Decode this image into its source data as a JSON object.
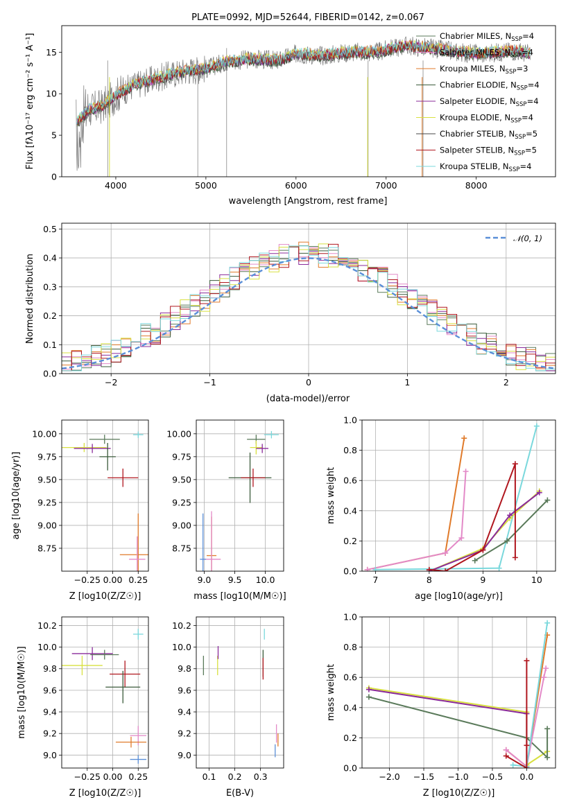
{
  "chart_data": [
    {
      "type": "line",
      "id": "spectrum",
      "title": "PLATE=0992, MJD=52644, FIBERID=0142, z=0.067",
      "xlabel": "wavelength [Angstrom, rest frame]",
      "ylabel": "Flux [fλ10⁻¹⁷ erg cm⁻² s⁻¹ A⁻¹]",
      "xlim": [
        3400,
        8880
      ],
      "ylim": [
        0,
        18.2
      ],
      "xticks": [
        4000,
        5000,
        6000,
        7000,
        8000
      ],
      "yticks": [
        0,
        5,
        10,
        15
      ],
      "grid": false,
      "legend_position": "top-right",
      "data_color": "#777777",
      "data_anchors": {
        "x": [
          3560,
          3700,
          3850,
          4000,
          4200,
          4500,
          4800,
          5000,
          5200,
          5500,
          5800,
          6000,
          6300,
          6600,
          6900,
          7200,
          7500,
          7800,
          8100,
          8400,
          8600
        ],
        "y": [
          6.5,
          8.0,
          8.5,
          9.8,
          11.0,
          12.0,
          12.8,
          13.0,
          13.8,
          14.2,
          14.0,
          14.8,
          14.6,
          15.0,
          15.0,
          15.8,
          15.5,
          15.0,
          14.8,
          15.2,
          14.8
        ]
      },
      "series": [
        {
          "name": "Chabrier MILES, N_SSP=4",
          "color": "#5a7a5a"
        },
        {
          "name": "Salpeter MILES, N_SSP=4",
          "color": "#e38ac8"
        },
        {
          "name": "Kroupa MILES, N_SSP=3",
          "color": "#e07a2a"
        },
        {
          "name": "Chabrier ELODIE, N_SSP=4",
          "color": "#3a5a3a"
        },
        {
          "name": "Salpeter ELODIE, N_SSP=4",
          "color": "#8a2a9a"
        },
        {
          "name": "Kroupa ELODIE, N_SSP=4",
          "color": "#d8e040"
        },
        {
          "name": "Chabrier STELIB, N_SSP=5",
          "color": "#444444"
        },
        {
          "name": "Salpeter STELIB, N_SSP=5",
          "color": "#b0161e"
        },
        {
          "name": "Kroupa STELIB, N_SSP=4",
          "color": "#7ad8dc"
        }
      ],
      "legend_parts": [
        [
          "Chabrier MILES, N",
          "SSP",
          "=4"
        ],
        [
          "Salpeter MILES, N",
          "SSP",
          "=4"
        ],
        [
          "Kroupa MILES, N",
          "SSP",
          "=3"
        ],
        [
          "Chabrier ELODIE, N",
          "SSP",
          "=4"
        ],
        [
          "Salpeter ELODIE, N",
          "SSP",
          "=4"
        ],
        [
          "Kroupa ELODIE, N",
          "SSP",
          "=4"
        ],
        [
          "Chabrier STELIB, N",
          "SSP",
          "=5"
        ],
        [
          "Salpeter STELIB, N",
          "SSP",
          "=5"
        ],
        [
          "Kroupa STELIB, N",
          "SSP",
          "=4"
        ]
      ]
    },
    {
      "type": "line",
      "id": "residuals",
      "xlabel": "(data-model)/error",
      "ylabel": "Normed distribution",
      "xlim": [
        -2.5,
        2.5
      ],
      "ylim": [
        0,
        0.52
      ],
      "xticks": [
        -2,
        -1,
        0,
        1,
        2
      ],
      "yticks": [
        0.0,
        0.1,
        0.2,
        0.3,
        0.4,
        0.5
      ],
      "grid": true,
      "legend_position": "top-right",
      "reference_curve": {
        "name": "𝒩(0, 1)",
        "color": "#5a8fd8"
      },
      "histogram_colors": [
        "#5a7a5a",
        "#e38ac8",
        "#e07a2a",
        "#3a5a3a",
        "#8a2a9a",
        "#d8e040",
        "#b0161e",
        "#7ad8dc"
      ]
    },
    {
      "type": "scatter",
      "id": "age-vs-Z",
      "xlabel": "Z [log10(Z/Z☉)]",
      "ylabel": "age  [log10(age/yr)]",
      "xlim": [
        -0.5,
        0.35
      ],
      "ylim": [
        8.5,
        10.15
      ],
      "xticks": [
        -0.25,
        0.0,
        0.25
      ],
      "yticks": [
        8.75,
        9.0,
        9.25,
        9.5,
        9.75,
        10.0
      ],
      "grid": true,
      "points": [
        {
          "x": 0.25,
          "y": 9.99,
          "xerr": 0.05,
          "yerr": 0.07,
          "color": "#7ad8dc"
        },
        {
          "x": -0.08,
          "y": 9.94,
          "xerr": 0.15,
          "yerr": 0.1,
          "color": "#5a7a5a"
        },
        {
          "x": -0.28,
          "y": 9.85,
          "xerr": 0.22,
          "yerr": 0.1,
          "color": "#d8e040"
        },
        {
          "x": -0.2,
          "y": 9.84,
          "xerr": 0.18,
          "yerr": 0.1,
          "color": "#8a2a9a"
        },
        {
          "x": -0.05,
          "y": 9.75,
          "xerr": 0.08,
          "yerr": 0.3,
          "color": "#3a5a3a"
        },
        {
          "x": 0.1,
          "y": 9.52,
          "xerr": 0.15,
          "yerr": 0.2,
          "color": "#b0161e"
        },
        {
          "x": 0.25,
          "y": 8.68,
          "xerr": 0.18,
          "yerr": 0.9,
          "color": "#e07a2a"
        },
        {
          "x": 0.24,
          "y": 8.63,
          "xerr": 0.08,
          "yerr": 0.5,
          "color": "#e38ac8"
        }
      ]
    },
    {
      "type": "scatter",
      "id": "age-vs-mass",
      "xlabel": "mass [log10(M/M☉)]",
      "ylabel": "",
      "xlim": [
        8.87,
        10.3
      ],
      "ylim": [
        8.5,
        10.15
      ],
      "xticks": [
        9.0,
        9.5,
        10.0
      ],
      "yticks": [
        8.75,
        9.0,
        9.25,
        9.5,
        9.75,
        10.0
      ],
      "grid": true,
      "points": [
        {
          "x": 10.1,
          "y": 9.99,
          "xerr": 0.12,
          "yerr": 0.08,
          "color": "#7ad8dc"
        },
        {
          "x": 9.85,
          "y": 9.94,
          "xerr": 0.15,
          "yerr": 0.1,
          "color": "#5a7a5a"
        },
        {
          "x": 9.85,
          "y": 9.85,
          "xerr": 0.1,
          "yerr": 0.15,
          "color": "#d8e040"
        },
        {
          "x": 9.95,
          "y": 9.84,
          "xerr": 0.1,
          "yerr": 0.1,
          "color": "#8a2a9a"
        },
        {
          "x": 9.75,
          "y": 9.52,
          "xerr": 0.35,
          "yerr": 0.55,
          "color": "#3a5a3a"
        },
        {
          "x": 9.8,
          "y": 9.52,
          "xerr": 0.2,
          "yerr": 0.2,
          "color": "#b0161e"
        },
        {
          "x": 9.12,
          "y": 8.67,
          "xerr": 0.08,
          "yerr": 0.85,
          "color": "#e07a2a"
        },
        {
          "x": 9.12,
          "y": 8.63,
          "xerr": 0.15,
          "yerr": 1.05,
          "color": "#e38ac8"
        },
        {
          "x": 8.98,
          "y": 8.63,
          "xerr": 0.05,
          "yerr": 1.0,
          "color": "#5a8fd8"
        }
      ]
    },
    {
      "type": "line",
      "id": "massweight-vs-age",
      "xlabel": "age  [log10(age/yr)]",
      "ylabel": "mass weight",
      "xlim": [
        6.75,
        10.35
      ],
      "ylim": [
        0,
        1.0
      ],
      "xticks": [
        7,
        8,
        9,
        10
      ],
      "yticks": [
        0.0,
        0.2,
        0.4,
        0.6,
        0.8,
        1.0
      ],
      "grid": true,
      "series": [
        {
          "color": "#e07a2a",
          "x": [
            6.85,
            8.3,
            8.65
          ],
          "y": [
            0.01,
            0.12,
            0.88
          ]
        },
        {
          "color": "#e38ac8",
          "x": [
            6.85,
            8.3,
            8.6,
            8.68
          ],
          "y": [
            0.01,
            0.12,
            0.22,
            0.66
          ]
        },
        {
          "color": "#7ad8dc",
          "x": [
            7.0,
            9.3,
            10.0
          ],
          "y": [
            0.01,
            0.02,
            0.96
          ]
        },
        {
          "color": "#d8e040",
          "x": [
            8.0,
            9.0,
            9.5,
            10.05
          ],
          "y": [
            0.0,
            0.15,
            0.35,
            0.53
          ]
        },
        {
          "color": "#8a2a9a",
          "x": [
            8.0,
            9.0,
            9.5,
            10.05
          ],
          "y": [
            0.0,
            0.14,
            0.37,
            0.52
          ]
        },
        {
          "color": "#5a7a5a",
          "x": [
            8.85,
            9.45,
            10.2
          ],
          "y": [
            0.07,
            0.2,
            0.47
          ]
        },
        {
          "color": "#b0161e",
          "x": [
            8.0,
            8.3,
            9.0,
            9.6,
            9.6
          ],
          "y": [
            0.01,
            0.0,
            0.14,
            0.71,
            0.09
          ]
        }
      ]
    },
    {
      "type": "scatter",
      "id": "mass-vs-Z",
      "xlabel": "Z [log10(Z/Z☉)]",
      "ylabel": "mass [log10(M/M☉)]",
      "xlim": [
        -0.5,
        0.35
      ],
      "ylim": [
        8.88,
        10.28
      ],
      "xticks": [
        -0.25,
        0.0,
        0.25
      ],
      "yticks": [
        9.0,
        9.2,
        9.4,
        9.6,
        9.8,
        10.0,
        10.2
      ],
      "grid": true,
      "points": [
        {
          "x": 0.25,
          "y": 10.12,
          "xerr": 0.05,
          "yerr": 0.1,
          "color": "#7ad8dc"
        },
        {
          "x": -0.2,
          "y": 9.94,
          "xerr": 0.2,
          "yerr": 0.12,
          "color": "#8a2a9a"
        },
        {
          "x": -0.08,
          "y": 9.93,
          "xerr": 0.14,
          "yerr": 0.09,
          "color": "#5a7a5a"
        },
        {
          "x": -0.3,
          "y": 9.83,
          "xerr": 0.2,
          "yerr": 0.18,
          "color": "#d8e040"
        },
        {
          "x": 0.12,
          "y": 9.75,
          "xerr": 0.15,
          "yerr": 0.25,
          "color": "#b0161e"
        },
        {
          "x": 0.1,
          "y": 9.63,
          "xerr": 0.17,
          "yerr": 0.3,
          "color": "#3a5a3a"
        },
        {
          "x": 0.25,
          "y": 9.18,
          "xerr": 0.08,
          "yerr": 0.18,
          "color": "#e38ac8"
        },
        {
          "x": 0.18,
          "y": 9.12,
          "xerr": 0.15,
          "yerr": 0.1,
          "color": "#e07a2a"
        },
        {
          "x": 0.25,
          "y": 8.96,
          "xerr": 0.08,
          "yerr": 0.08,
          "color": "#5a8fd8"
        }
      ]
    },
    {
      "type": "scatter",
      "id": "mass-vs-EBV",
      "xlabel": "E(B-V)",
      "ylabel": "",
      "xlim": [
        0.05,
        0.39
      ],
      "ylim": [
        8.88,
        10.28
      ],
      "xticks": [
        0.1,
        0.2,
        0.3
      ],
      "yticks": [
        9.0,
        9.2,
        9.4,
        9.6,
        9.8,
        10.0,
        10.2
      ],
      "grid": true,
      "points": [
        {
          "x": 0.315,
          "y": 10.12,
          "yerr": 0.1,
          "color": "#7ad8dc"
        },
        {
          "x": 0.078,
          "y": 9.83,
          "yerr": 0.18,
          "color": "#5a7a5a"
        },
        {
          "x": 0.133,
          "y": 9.83,
          "yerr": 0.18,
          "color": "#d8e040"
        },
        {
          "x": 0.135,
          "y": 9.95,
          "yerr": 0.12,
          "color": "#8a2a9a"
        },
        {
          "x": 0.31,
          "y": 9.85,
          "yerr": 0.25,
          "color": "#3a5a3a"
        },
        {
          "x": 0.31,
          "y": 9.8,
          "yerr": 0.2,
          "color": "#b0161e"
        },
        {
          "x": 0.362,
          "y": 9.2,
          "yerr": 0.17,
          "color": "#e38ac8"
        },
        {
          "x": 0.368,
          "y": 9.14,
          "yerr": 0.12,
          "color": "#e07a2a"
        },
        {
          "x": 0.357,
          "y": 9.04,
          "yerr": 0.12,
          "color": "#5a8fd8"
        }
      ]
    },
    {
      "type": "line",
      "id": "massweight-vs-Z",
      "xlabel": "Z [log10(Z/Z☉)]",
      "ylabel": "mass weight",
      "xlim": [
        -2.4,
        0.42
      ],
      "ylim": [
        0,
        1.0
      ],
      "xticks": [
        -2.0,
        -1.5,
        -1.0,
        -0.5,
        0.0
      ],
      "yticks": [
        0.0,
        0.2,
        0.4,
        0.6,
        0.8,
        1.0
      ],
      "grid": true,
      "series": [
        {
          "color": "#d8e040",
          "x": [
            -2.3,
            0.0,
            0.0,
            0.3
          ],
          "y": [
            0.53,
            0.37,
            0.02,
            0.11
          ]
        },
        {
          "color": "#8a2a9a",
          "x": [
            -2.3,
            0.0,
            0.0
          ],
          "y": [
            0.52,
            0.36,
            0.01
          ]
        },
        {
          "color": "#5a7a5a",
          "x": [
            -2.3,
            0.0,
            0.3,
            0.3
          ],
          "y": [
            0.47,
            0.2,
            0.07,
            0.26
          ]
        },
        {
          "color": "#e07a2a",
          "x": [
            -0.3,
            0.0,
            0.3
          ],
          "y": [
            0.12,
            0.01,
            0.88
          ]
        },
        {
          "color": "#e38ac8",
          "x": [
            -0.3,
            0.0,
            0.25,
            0.28
          ],
          "y": [
            0.12,
            0.01,
            0.6,
            0.66
          ]
        },
        {
          "color": "#7ad8dc",
          "x": [
            -0.2,
            0.0,
            0.3
          ],
          "y": [
            0.02,
            0.01,
            0.96
          ]
        },
        {
          "color": "#b0161e",
          "x": [
            -0.3,
            0.0,
            0.0,
            0.0
          ],
          "y": [
            0.08,
            0.0,
            0.71,
            0.15
          ]
        }
      ]
    }
  ]
}
